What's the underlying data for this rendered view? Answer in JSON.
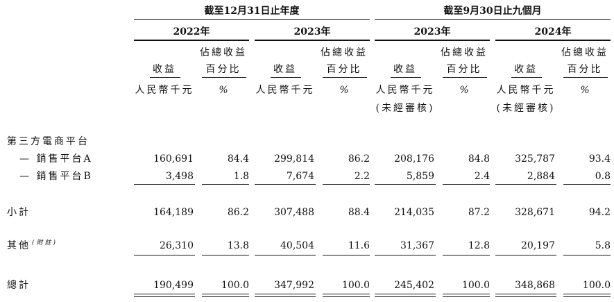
{
  "header": {
    "period1": "截至12月31日止年度",
    "period2": "截至9月30日止九個月",
    "years": [
      "2022年",
      "2023年",
      "2023年",
      "2024年"
    ],
    "col_revenue": "收益",
    "col_pct_line1": "佔總收益",
    "col_pct_line2": "百分比",
    "unit_revenue": "人民幣千元",
    "unit_pct": "%",
    "unaudited": "(未經審核)"
  },
  "rows": {
    "platform_header": "第三方電商平台",
    "platform_a": {
      "label": "— 銷售平台A",
      "values": [
        "160,691",
        "84.4",
        "299,814",
        "86.2",
        "208,176",
        "84.8",
        "325,787",
        "93.4"
      ]
    },
    "platform_b": {
      "label": "— 銷售平台B",
      "values": [
        "3,498",
        "1.8",
        "7,674",
        "2.2",
        "5,859",
        "2.4",
        "2,884",
        "0.8"
      ]
    },
    "subtotal": {
      "label": "小計",
      "values": [
        "164,189",
        "86.2",
        "307,488",
        "88.4",
        "214,035",
        "87.2",
        "328,671",
        "94.2"
      ]
    },
    "others": {
      "label": "其他",
      "note": "(附註)",
      "values": [
        "26,310",
        "13.8",
        "40,504",
        "11.6",
        "31,367",
        "12.8",
        "20,197",
        "5.8"
      ]
    },
    "total": {
      "label": "總計",
      "values": [
        "190,499",
        "100.0",
        "347,992",
        "100.0",
        "245,402",
        "100.0",
        "348,868",
        "100.0"
      ]
    }
  }
}
